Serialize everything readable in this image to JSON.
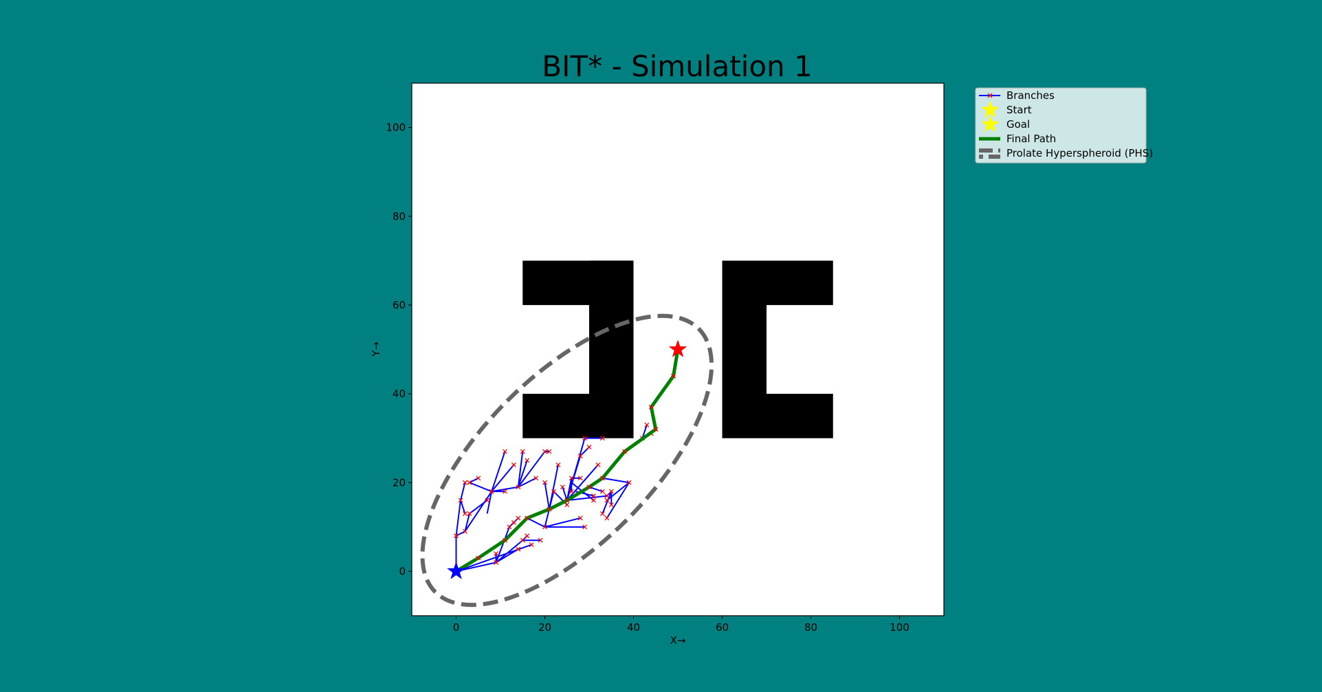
{
  "chart_data": {
    "type": "scatter",
    "title": "BIT* - Simulation 1",
    "xlabel": "X→",
    "ylabel": "Y→",
    "xlim": [
      -10,
      110
    ],
    "ylim": [
      -10,
      110
    ],
    "xticks": [
      0,
      20,
      40,
      60,
      80,
      100
    ],
    "yticks": [
      0,
      20,
      40,
      60,
      80,
      100
    ],
    "grid": false,
    "legend_position": "outside-top-right",
    "colors": {
      "background": "#008080",
      "plot_bg": "#ffffff",
      "obstacle": "#000000",
      "branch": "#0000ff",
      "node_marker": "#ff0000",
      "path": "#008000",
      "start": "#0000ff",
      "goal": "#ff0000",
      "phs": "#666666",
      "legend_bg": "#cde6e6"
    },
    "legend": [
      {
        "label": "Branches",
        "kind": "branch"
      },
      {
        "label": "Start",
        "kind": "star"
      },
      {
        "label": "Goal",
        "kind": "star"
      },
      {
        "label": "Final Path",
        "kind": "path"
      },
      {
        "label": "Prolate Hyperspheroid (PHS)",
        "kind": "phs"
      }
    ],
    "start": [
      0,
      0
    ],
    "goal": [
      50,
      50
    ],
    "obstacles": [
      [
        15,
        60,
        25,
        10
      ],
      [
        30,
        30,
        10,
        40
      ],
      [
        15,
        30,
        15,
        10
      ],
      [
        60,
        30,
        10,
        40
      ],
      [
        70,
        60,
        15,
        10
      ],
      [
        70,
        30,
        15,
        10
      ]
    ],
    "phs": {
      "center": [
        25,
        25
      ],
      "semi_major": 42,
      "semi_minor": 19,
      "angle_deg": 45
    },
    "final_path": [
      [
        0,
        0
      ],
      [
        5,
        3
      ],
      [
        11,
        7
      ],
      [
        16,
        12
      ],
      [
        21,
        14
      ],
      [
        25,
        16
      ],
      [
        30,
        19
      ],
      [
        33,
        21
      ],
      [
        38,
        27
      ],
      [
        45,
        32
      ],
      [
        44,
        37
      ],
      [
        49,
        44
      ],
      [
        50,
        50
      ]
    ],
    "branches": [
      [
        [
          0,
          0
        ],
        [
          0,
          8
        ]
      ],
      [
        [
          0,
          8
        ],
        [
          1,
          16
        ]
      ],
      [
        [
          1,
          16
        ],
        [
          2,
          20
        ]
      ],
      [
        [
          1,
          16
        ],
        [
          2,
          13
        ]
      ],
      [
        [
          0,
          8
        ],
        [
          2,
          9
        ]
      ],
      [
        [
          2,
          9
        ],
        [
          3,
          13
        ]
      ],
      [
        [
          2,
          9
        ],
        [
          8,
          18
        ]
      ],
      [
        [
          8,
          18
        ],
        [
          3,
          20
        ]
      ],
      [
        [
          3,
          20
        ],
        [
          5,
          21
        ]
      ],
      [
        [
          8,
          18
        ],
        [
          11,
          27
        ]
      ],
      [
        [
          8,
          18
        ],
        [
          11,
          18
        ]
      ],
      [
        [
          8,
          18
        ],
        [
          13,
          24
        ]
      ],
      [
        [
          8,
          18
        ],
        [
          14,
          19
        ]
      ],
      [
        [
          14,
          19
        ],
        [
          15,
          27
        ]
      ],
      [
        [
          14,
          19
        ],
        [
          16,
          25
        ]
      ],
      [
        [
          14,
          19
        ],
        [
          20,
          27
        ]
      ],
      [
        [
          20,
          27
        ],
        [
          21,
          27
        ]
      ],
      [
        [
          14,
          19
        ],
        [
          18,
          21
        ]
      ],
      [
        [
          7,
          13
        ],
        [
          8,
          18
        ]
      ],
      [
        [
          3,
          13
        ],
        [
          7,
          16
        ]
      ],
      [
        [
          0,
          0
        ],
        [
          9,
          2
        ]
      ],
      [
        [
          9,
          2
        ],
        [
          9,
          4
        ]
      ],
      [
        [
          9,
          2
        ],
        [
          14,
          5
        ]
      ],
      [
        [
          9,
          2
        ],
        [
          15,
          7
        ]
      ],
      [
        [
          15,
          7
        ],
        [
          16,
          8
        ]
      ],
      [
        [
          15,
          7
        ],
        [
          19,
          7
        ]
      ],
      [
        [
          9,
          2
        ],
        [
          12,
          10
        ]
      ],
      [
        [
          12,
          10
        ],
        [
          14,
          12
        ]
      ],
      [
        [
          12,
          10
        ],
        [
          13,
          11
        ]
      ],
      [
        [
          0,
          0
        ],
        [
          17,
          6
        ]
      ],
      [
        [
          16,
          12
        ],
        [
          20,
          10
        ]
      ],
      [
        [
          20,
          10
        ],
        [
          29,
          10
        ]
      ],
      [
        [
          20,
          10
        ],
        [
          28,
          12
        ]
      ],
      [
        [
          20,
          10
        ],
        [
          22,
          18
        ]
      ],
      [
        [
          22,
          18
        ],
        [
          25,
          15
        ]
      ],
      [
        [
          21,
          14
        ],
        [
          20,
          20
        ]
      ],
      [
        [
          21,
          14
        ],
        [
          23,
          24
        ]
      ],
      [
        [
          25,
          16
        ],
        [
          26,
          21
        ]
      ],
      [
        [
          26,
          21
        ],
        [
          28,
          21
        ]
      ],
      [
        [
          26,
          21
        ],
        [
          26,
          18
        ]
      ],
      [
        [
          25,
          16
        ],
        [
          24,
          19
        ]
      ],
      [
        [
          25,
          16
        ],
        [
          33,
          21
        ]
      ],
      [
        [
          25,
          16
        ],
        [
          32,
          24
        ]
      ],
      [
        [
          25,
          16
        ],
        [
          28,
          26
        ]
      ],
      [
        [
          28,
          26
        ],
        [
          30,
          28
        ]
      ],
      [
        [
          25,
          16
        ],
        [
          29,
          30
        ]
      ],
      [
        [
          29,
          30
        ],
        [
          33,
          30
        ]
      ],
      [
        [
          25,
          16
        ],
        [
          34,
          17
        ]
      ],
      [
        [
          34,
          17
        ],
        [
          35,
          18
        ]
      ],
      [
        [
          35,
          18
        ],
        [
          33,
          13
        ]
      ],
      [
        [
          35,
          18
        ],
        [
          35,
          15
        ]
      ],
      [
        [
          30,
          19
        ],
        [
          33,
          18
        ]
      ],
      [
        [
          38,
          27
        ],
        [
          42,
          30
        ]
      ],
      [
        [
          42,
          30
        ],
        [
          43,
          33
        ]
      ],
      [
        [
          45,
          32
        ],
        [
          44,
          31
        ]
      ],
      [
        [
          33,
          21
        ],
        [
          39,
          20
        ]
      ],
      [
        [
          39,
          20
        ],
        [
          34,
          16
        ]
      ],
      [
        [
          39,
          20
        ],
        [
          34,
          12
        ]
      ],
      [
        [
          27,
          18
        ],
        [
          31,
          17
        ]
      ],
      [
        [
          26,
          20
        ],
        [
          31,
          16
        ]
      ]
    ]
  }
}
